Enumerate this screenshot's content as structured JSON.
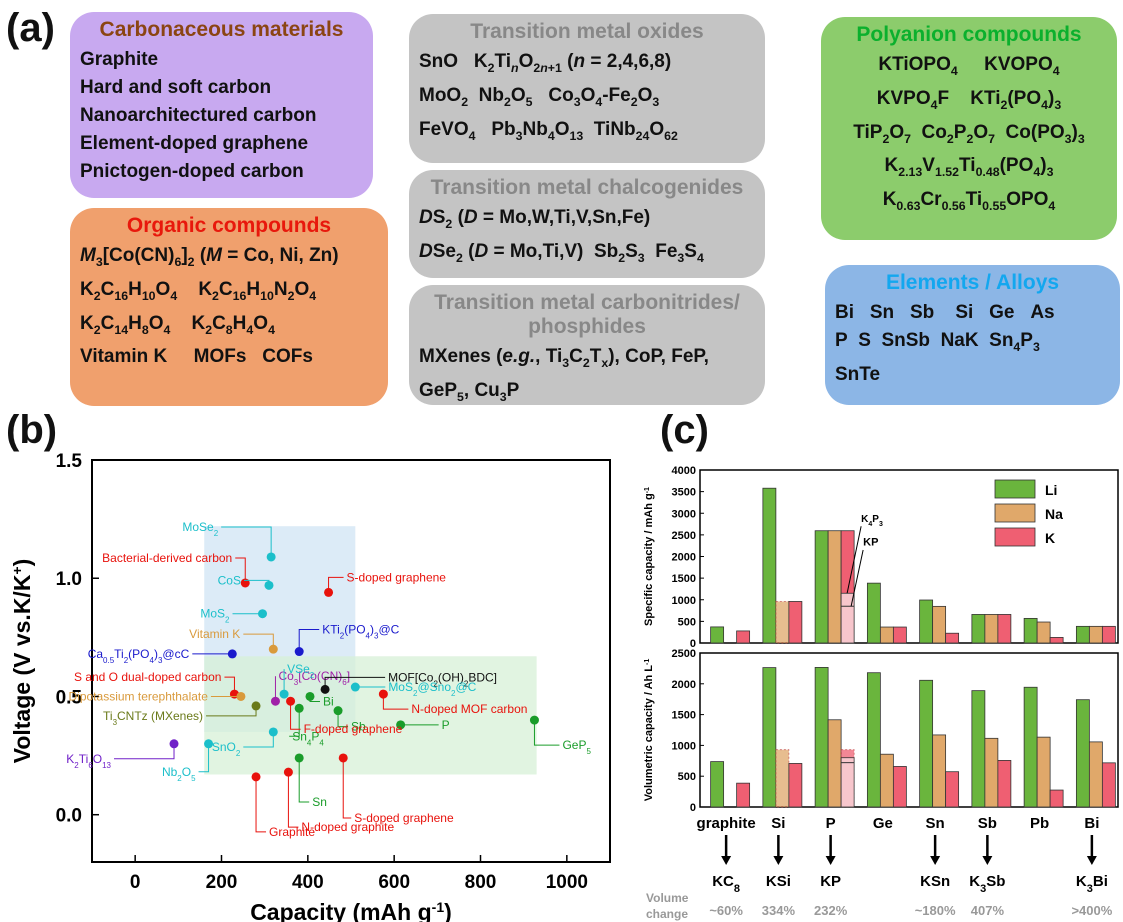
{
  "panel_a": {
    "label": "(a)",
    "boxes": [
      {
        "key": "carbon",
        "title": "Carbonaceous materials",
        "lines": [
          "Graphite",
          "Hard and soft carbon",
          "Nanoarchitectured carbon",
          "Element-doped graphene",
          "Pnictogen-doped carbon"
        ]
      },
      {
        "key": "organic",
        "title": "Organic compounds",
        "lines": [
          "<i>M</i><sub>3</sub>[Co(CN)<sub>6</sub>]<sub>2</sub> (<i>M</i> = Co, Ni, Zn)",
          "K<sub>2</sub>C<sub>16</sub>H<sub>10</sub>O<sub>4</sub>&nbsp;&nbsp;&nbsp;&nbsp;K<sub>2</sub>C<sub>16</sub>H<sub>10</sub>N<sub>2</sub>O<sub>4</sub>",
          "K<sub>2</sub>C<sub>14</sub>H<sub>8</sub>O<sub>4</sub>&nbsp;&nbsp;&nbsp;&nbsp;K<sub>2</sub>C<sub>8</sub>H<sub>4</sub>O<sub>4</sub>",
          "Vitamin K&nbsp;&nbsp;&nbsp;&nbsp;&nbsp;MOFs&nbsp;&nbsp;&nbsp;COFs"
        ]
      },
      {
        "key": "tmo",
        "title": "Transition metal oxides",
        "lines": [
          "SnO&nbsp;&nbsp;&nbsp;K<sub>2</sub>Ti<sub><i>n</i></sub>O<sub>2<i>n</i>+1</sub> (<i>n</i> = 2,4,6,8)",
          "MoO<sub>2</sub>&nbsp;&nbsp;Nb<sub>2</sub>O<sub>5</sub>&nbsp;&nbsp;&nbsp;Co<sub>3</sub>O<sub>4</sub>-Fe<sub>2</sub>O<sub>3</sub>",
          "FeVO<sub>4</sub>&nbsp;&nbsp;&nbsp;Pb<sub>3</sub>Nb<sub>4</sub>O<sub>13</sub>&nbsp;&nbsp;TiNb<sub>24</sub>O<sub>62</sub>"
        ]
      },
      {
        "key": "tmc",
        "title": "Transition metal chalcogenides",
        "lines": [
          "<i>D</i>S<sub>2</sub> (<i>D</i> = Mo,W,Ti,V,Sn,Fe)",
          "<i>D</i>Se<sub>2</sub> (<i>D</i> = Mo,Ti,V)&nbsp;&nbsp;Sb<sub>2</sub>S<sub>3</sub>&nbsp;&nbsp;Fe<sub>3</sub>S<sub>4</sub>"
        ]
      },
      {
        "key": "tmcp",
        "title": "Transition metal carbonitrides/<br>phosphides",
        "lines": [
          "MXenes (<i>e.g.</i>, Ti<sub>3</sub>C<sub>2</sub>T<sub>x</sub>), CoP, FeP,",
          "GeP<sub>5</sub>, Cu<sub>3</sub>P"
        ]
      },
      {
        "key": "poly",
        "title": "Polyanion compounds",
        "lines": [
          "KTiOPO<sub>4</sub>&nbsp;&nbsp;&nbsp;&nbsp;&nbsp;KVOPO<sub>4</sub>",
          "KVPO<sub>4</sub>F&nbsp;&nbsp;&nbsp;&nbsp;KTi<sub>2</sub>(PO<sub>4</sub>)<sub>3</sub>",
          "TiP<sub>2</sub>O<sub>7</sub>&nbsp;&nbsp;Co<sub>2</sub>P<sub>2</sub>O<sub>7</sub>&nbsp;&nbsp;Co(PO<sub>3</sub>)<sub>3</sub>",
          "K<sub>2.13</sub>V<sub>1.52</sub>Ti<sub>0.48</sub>(PO<sub>4</sub>)<sub>3</sub>",
          "K<sub>0.63</sub>Cr<sub>0.56</sub>Ti<sub>0.55</sub>OPO<sub>4</sub>"
        ]
      },
      {
        "key": "elem",
        "title": "Elements / Alloys",
        "lines": [
          "Bi&nbsp;&nbsp;&nbsp;Sn&nbsp;&nbsp;&nbsp;Sb&nbsp;&nbsp;&nbsp;&nbsp;Si&nbsp;&nbsp;&nbsp;Ge&nbsp;&nbsp;&nbsp;As",
          "P&nbsp;&nbsp;S&nbsp;&nbsp;SnSb&nbsp;&nbsp;NaK&nbsp;&nbsp;Sn<sub>4</sub>P<sub>3</sub>",
          "SnTe"
        ]
      }
    ]
  },
  "chart_data": [
    {
      "panel": "(b)",
      "type": "scatter",
      "xlabel": "Capacity (mAh g<tspan baseline-shift='super' font-size='14'>-1</tspan>)",
      "ylabel": "Voltage (V vs.K/K<tspan baseline-shift='super' font-size='14'>+</tspan>)",
      "xlim": [
        -100,
        1100
      ],
      "ylim": [
        -0.2,
        1.5
      ],
      "xticks": [
        "0",
        "200",
        "400",
        "600",
        "800",
        "1000"
      ],
      "yticks": [
        "0.0",
        "0.5",
        "1.0",
        "1.5"
      ],
      "regions": [
        {
          "x0": 160,
          "x1": 510,
          "y0": 0.35,
          "y1": 1.22,
          "color": "#d6e8f6"
        },
        {
          "x0": 160,
          "x1": 930,
          "y0": 0.17,
          "y1": 0.67,
          "color": "#d7f0d7"
        }
      ],
      "points": [
        {
          "label": "MoSe<tspan baseline-shift='sub' font-size='8'>2</tspan>",
          "x": 315,
          "y": 1.09,
          "color": "#1bbfca"
        },
        {
          "label": "Bacterial-derived carbon",
          "x": 255,
          "y": 0.98,
          "color": "#e8120c"
        },
        {
          "label": "CoS",
          "x": 310,
          "y": 0.97,
          "color": "#1bbfca"
        },
        {
          "label": "S-doped graphene",
          "x": 448,
          "y": 0.94,
          "color": "#e8120c"
        },
        {
          "label": "MoS<tspan baseline-shift='sub' font-size='8'>2</tspan>",
          "x": 295,
          "y": 0.85,
          "color": "#1bbfca"
        },
        {
          "label": "Vitamin K",
          "x": 320,
          "y": 0.7,
          "color": "#d99a3c"
        },
        {
          "label": "KTi<tspan baseline-shift='sub' font-size='8'>2</tspan>(PO<tspan baseline-shift='sub' font-size='8'>4</tspan>)<tspan baseline-shift='sub' font-size='8'>3</tspan>@C",
          "x": 380,
          "y": 0.69,
          "color": "#1a1acc"
        },
        {
          "label": "Ca<tspan baseline-shift='sub' font-size='8'>0.5</tspan>Ti<tspan baseline-shift='sub' font-size='8'>2</tspan>(PO<tspan baseline-shift='sub' font-size='8'>4</tspan>)<tspan baseline-shift='sub' font-size='8'>3</tspan>@cC",
          "x": 225,
          "y": 0.68,
          "color": "#1a1acc"
        },
        {
          "label": "S and O dual-doped carbon",
          "x": 230,
          "y": 0.51,
          "color": "#e8120c"
        },
        {
          "label": "Co<tspan baseline-shift='sub' font-size='8'>3</tspan>[Co(CN)<tspan baseline-shift='sub' font-size='8'>6</tspan>]",
          "x": 325,
          "y": 0.48,
          "color": "#a020a8"
        },
        {
          "label": "MOF[Co<tspan baseline-shift='sub' font-size='8'>2</tspan>(OH)<tspan baseline-shift='sub' font-size='8'>2</tspan>BDC]",
          "x": 440,
          "y": 0.53,
          "color": "#111111"
        },
        {
          "label": "VSe<tspan baseline-shift='sub' font-size='8'>2</tspan>",
          "x": 345,
          "y": 0.51,
          "color": "#1bbfca"
        },
        {
          "label": "MoS<tspan baseline-shift='sub' font-size='8'>2</tspan>@Sno<tspan baseline-shift='sub' font-size='8'>2</tspan>@C",
          "x": 510,
          "y": 0.54,
          "color": "#1bbfca"
        },
        {
          "label": "N-doped MOF carbon",
          "x": 575,
          "y": 0.51,
          "color": "#e8120c"
        },
        {
          "label": "Dipotassium terephthalate",
          "x": 245,
          "y": 0.5,
          "color": "#d99a3c"
        },
        {
          "label": "Ti<tspan baseline-shift='sub' font-size='8'>3</tspan>CNTz (MXenes)",
          "x": 280,
          "y": 0.46,
          "color": "#6a7a1a"
        },
        {
          "label": "Bi",
          "x": 405,
          "y": 0.5,
          "color": "#1a9c2a"
        },
        {
          "label": "Sb",
          "x": 470,
          "y": 0.44,
          "color": "#1a9c2a"
        },
        {
          "label": "Sn<tspan baseline-shift='sub' font-size='8'>4</tspan>P<tspan baseline-shift='sub' font-size='8'>4</tspan>",
          "x": 380,
          "y": 0.45,
          "color": "#1a9c2a"
        },
        {
          "label": "P",
          "x": 615,
          "y": 0.38,
          "color": "#1a9c2a"
        },
        {
          "label": "GeP<tspan baseline-shift='sub' font-size='8'>5</tspan>",
          "x": 925,
          "y": 0.4,
          "color": "#1a9c2a"
        },
        {
          "label": "F-doped graphene",
          "x": 360,
          "y": 0.48,
          "color": "#e8120c"
        },
        {
          "label": "SnO<tspan baseline-shift='sub' font-size='8'>2</tspan>",
          "x": 320,
          "y": 0.35,
          "color": "#1bbfca"
        },
        {
          "label": "Nb<tspan baseline-shift='sub' font-size='8'>2</tspan>O<tspan baseline-shift='sub' font-size='8'>5</tspan>",
          "x": 170,
          "y": 0.3,
          "color": "#1bbfca"
        },
        {
          "label": "K<tspan baseline-shift='sub' font-size='8'>2</tspan>Ti<tspan baseline-shift='sub' font-size='8'>6</tspan>O<tspan baseline-shift='sub' font-size='8'>13</tspan>",
          "x": 90,
          "y": 0.3,
          "color": "#7020c8"
        },
        {
          "label": "S-doped graphene",
          "x": 482,
          "y": 0.24,
          "color": "#e8120c"
        },
        {
          "label": "Sn",
          "x": 380,
          "y": 0.24,
          "color": "#1a9c2a"
        },
        {
          "label": "N-doped graphite",
          "x": 355,
          "y": 0.18,
          "color": "#e8120c"
        },
        {
          "label": "Graphite",
          "x": 280,
          "y": 0.16,
          "color": "#e8120c"
        }
      ]
    },
    {
      "panel": "(c)",
      "type": "bar",
      "categories": [
        "graphite",
        "Si",
        "P",
        "Ge",
        "Sn",
        "Sb",
        "Pb",
        "Bi"
      ],
      "series": [
        {
          "name": "Li",
          "color": "#6ab53d"
        },
        {
          "name": "Na",
          "color": "#e0a86a"
        },
        {
          "name": "K",
          "color": "#ef5f72"
        }
      ],
      "top": {
        "ylabel": "Specific capacity / mAh g<tspan baseline-shift='super' font-size='7'>-1</tspan>",
        "ylim": [
          0,
          4000
        ],
        "yticks": [
          "0",
          "500",
          "1000",
          "1500",
          "2000",
          "2500",
          "3000",
          "3500",
          "4000"
        ],
        "values": [
          [
            372,
            null,
            279
          ],
          [
            3579,
            960,
            960
          ],
          [
            2596,
            2596,
            2596
          ],
          [
            1384,
            369,
            369
          ],
          [
            994,
            847,
            226
          ],
          [
            660,
            660,
            660
          ],
          [
            569,
            485,
            129
          ],
          [
            385,
            385,
            385
          ]
        ],
        "annot": [
          "K<tspan baseline-shift='sub' font-size='7'>4</tspan>P<tspan baseline-shift='sub' font-size='7'>3</tspan>",
          "KP"
        ]
      },
      "bottom": {
        "ylabel": "Volumetric capacity / Ah L<tspan baseline-shift='super' font-size='7'>-1</tspan>",
        "ylim": [
          0,
          2500
        ],
        "yticks": [
          "0",
          "500",
          "1000",
          "1500",
          "2000",
          "2500"
        ],
        "values": [
          [
            737,
            null,
            387
          ],
          [
            2263,
            930,
            707
          ],
          [
            2266,
            1416,
            930
          ],
          [
            2180,
            857,
            658
          ],
          [
            2057,
            1170,
            573
          ],
          [
            1889,
            1115,
            756
          ],
          [
            1944,
            1134,
            275
          ],
          [
            1742,
            1057,
            717
          ]
        ]
      },
      "products": [
        "KC<tspan baseline-shift='sub' font-size='11'>8</tspan>",
        "KSi",
        "KP",
        "",
        "KSn",
        "K<tspan baseline-shift='sub' font-size='11'>3</tspan>Sb",
        "",
        "K<tspan baseline-shift='sub' font-size='11'>3</tspan>Bi"
      ],
      "volume_label": [
        "Volume",
        "change"
      ],
      "volume_change": [
        "~60%",
        "334%",
        "232%",
        "",
        "~180%",
        "407%",
        "",
        ">400%"
      ]
    }
  ]
}
